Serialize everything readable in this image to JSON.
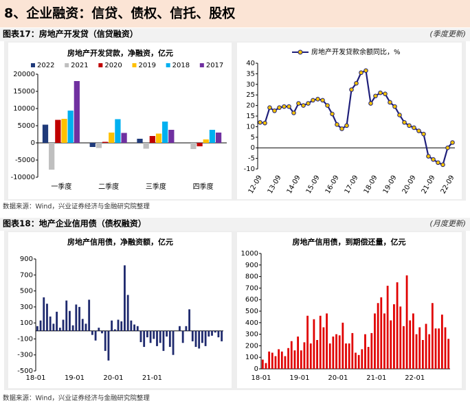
{
  "header": {
    "title": "8、企业融资：信贷、债权、信托、股权"
  },
  "sections": [
    {
      "label": "图表17：房地产开发贷（信贷融资）",
      "note": "(季度更新)",
      "source": "数据来源：Wind，兴业证券经济与金融研究院整理"
    },
    {
      "label": "图表18：地产企业信用债（债权融资）",
      "note": "(月度更新)",
      "source": "数据来源：Wind，兴业证券经济与金融研究院整理"
    }
  ],
  "chart_data": [
    {
      "type": "bar",
      "title": "房地产开发贷款，净融资，亿元",
      "legend": "top",
      "categories": [
        "一季度",
        "二季度",
        "三季度",
        "四季度"
      ],
      "series": [
        {
          "name": "2022",
          "color": "#1f3a7a",
          "values": [
            5300,
            -1200,
            1200,
            null
          ]
        },
        {
          "name": "2021",
          "color": "#bfbfbf",
          "values": [
            -7800,
            -1500,
            -1700,
            -1800
          ]
        },
        {
          "name": "2020",
          "color": "#c00000",
          "values": [
            6700,
            300,
            2000,
            -1000
          ]
        },
        {
          "name": "2019",
          "color": "#ffc000",
          "values": [
            7000,
            3000,
            2700,
            1000
          ]
        },
        {
          "name": "2018",
          "color": "#00b0f0",
          "values": [
            9400,
            6900,
            6200,
            3800
          ]
        },
        {
          "name": "2017",
          "color": "#7030a0",
          "values": [
            18000,
            2900,
            3800,
            3000
          ]
        }
      ],
      "ylim": [
        -10000,
        20000
      ],
      "yticks": [
        -10000,
        -5000,
        0,
        5000,
        10000,
        15000,
        20000
      ]
    },
    {
      "type": "line",
      "legend": "top",
      "categories": [
        "12-09",
        null,
        null,
        null,
        "13-09",
        null,
        null,
        null,
        "14-09",
        null,
        null,
        null,
        "15-09",
        null,
        null,
        null,
        "16-09",
        null,
        null,
        null,
        "17-09",
        null,
        null,
        null,
        "18-09",
        null,
        null,
        null,
        "19-09",
        null,
        null,
        null,
        "20-09",
        null,
        null,
        null,
        "21-09",
        null,
        null,
        null,
        "22-09"
      ],
      "series": [
        {
          "name": "房地产开发贷款余额同比，%",
          "color": "#1f1f7a",
          "marker_color": "#f5c400",
          "values": [
            12,
            11.7,
            19,
            17.5,
            19,
            19.5,
            19.5,
            16.5,
            21,
            20,
            21,
            22.5,
            23,
            22.5,
            20,
            16,
            11,
            9,
            10.5,
            27.5,
            30.5,
            35.5,
            36.5,
            21,
            24.5,
            26,
            25.5,
            21.5,
            19.5,
            15.5,
            12,
            10.5,
            9.5,
            8,
            6.5,
            -4,
            -5.5,
            -7,
            -8,
            0,
            2.5
          ]
        }
      ],
      "ylim": [
        -10,
        40
      ],
      "yticks": [
        -10,
        -5,
        0,
        5,
        10,
        15,
        20,
        25,
        30,
        35,
        40
      ]
    },
    {
      "type": "bar",
      "title": "房地产信用债，净融资额，亿元",
      "color": "#1f2a6e",
      "categories": [
        "18-01",
        null,
        null,
        null,
        null,
        null,
        null,
        null,
        null,
        null,
        null,
        null,
        "19-01",
        null,
        null,
        null,
        null,
        null,
        null,
        null,
        null,
        null,
        null,
        null,
        "20-01",
        null,
        null,
        null,
        null,
        null,
        null,
        null,
        null,
        null,
        null,
        null,
        "21-01",
        null,
        null,
        null,
        null,
        null,
        null,
        null,
        null,
        null,
        null,
        null,
        null,
        null,
        null,
        null,
        null,
        null,
        null,
        null,
        null,
        null
      ],
      "values": [
        60,
        130,
        420,
        340,
        180,
        90,
        240,
        40,
        140,
        380,
        250,
        70,
        330,
        300,
        150,
        90,
        390,
        -50,
        -120,
        40,
        -30,
        -250,
        -370,
        130,
        20,
        140,
        120,
        820,
        450,
        130,
        80,
        60,
        -140,
        -200,
        -80,
        -150,
        -100,
        -190,
        -150,
        -250,
        -70,
        -200,
        -300,
        0,
        60,
        -150,
        60,
        270,
        -130,
        -200,
        -220,
        -150,
        -190,
        -70,
        -60,
        -20,
        -80,
        -130
      ],
      "ylim": [
        -500,
        900
      ],
      "yticks": [
        -500,
        -300,
        -100,
        100,
        300,
        500,
        700,
        900
      ]
    },
    {
      "type": "bar",
      "title": "房地产信用债，到期偿还量，亿元",
      "color": "#e00000",
      "categories": [
        "18-01",
        null,
        null,
        null,
        null,
        null,
        null,
        null,
        null,
        null,
        null,
        null,
        "19-01",
        null,
        null,
        null,
        null,
        null,
        null,
        null,
        null,
        null,
        null,
        null,
        "20-01",
        null,
        null,
        null,
        null,
        null,
        null,
        null,
        null,
        null,
        null,
        null,
        "21-01",
        null,
        null,
        null,
        null,
        null,
        null,
        null,
        null,
        null,
        null,
        null,
        "22-01",
        null,
        null,
        null,
        null,
        null,
        null,
        null,
        null,
        null,
        null
      ],
      "values": [
        80,
        50,
        150,
        140,
        110,
        170,
        150,
        110,
        180,
        240,
        160,
        280,
        160,
        230,
        460,
        220,
        430,
        250,
        460,
        360,
        480,
        220,
        280,
        300,
        290,
        400,
        220,
        220,
        310,
        140,
        120,
        170,
        300,
        190,
        310,
        480,
        570,
        620,
        480,
        720,
        420,
        560,
        750,
        540,
        370,
        810,
        420,
        480,
        300,
        360,
        250,
        390,
        300,
        570,
        350,
        350,
        470,
        360,
        260
      ],
      "ylim": [
        0,
        1000
      ],
      "yticks": [
        0,
        100,
        200,
        300,
        400,
        500,
        600,
        700,
        800,
        900,
        1000
      ]
    }
  ]
}
